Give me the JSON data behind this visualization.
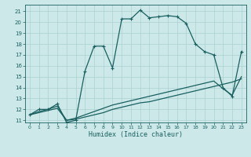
{
  "xlabel": "Humidex (Indice chaleur)",
  "bg_color": "#cce8e8",
  "grid_color": "#aad0d0",
  "line_color": "#1a6060",
  "xlim": [
    -0.5,
    23.5
  ],
  "ylim": [
    10.8,
    21.6
  ],
  "yticks": [
    11,
    12,
    13,
    14,
    15,
    16,
    17,
    18,
    19,
    20,
    21
  ],
  "xticks": [
    0,
    1,
    2,
    3,
    4,
    5,
    6,
    7,
    8,
    9,
    10,
    11,
    12,
    13,
    14,
    15,
    16,
    17,
    18,
    19,
    20,
    21,
    22,
    23
  ],
  "curve_main_x": [
    0,
    1,
    2,
    3,
    4,
    5,
    6,
    7,
    8,
    9,
    10,
    11,
    12,
    13,
    14,
    15,
    16,
    17,
    18,
    19,
    20,
    21,
    22,
    23
  ],
  "curve_main_y": [
    11.5,
    12.0,
    12.0,
    12.5,
    10.8,
    11.0,
    15.5,
    17.8,
    17.8,
    15.8,
    20.3,
    20.3,
    21.1,
    20.4,
    20.5,
    20.6,
    20.5,
    19.9,
    18.0,
    17.3,
    17.0,
    14.0,
    13.2,
    17.3
  ],
  "curve_flat1_x": [
    0,
    1,
    2,
    3,
    4,
    5,
    6,
    7,
    8,
    9,
    10,
    11,
    12,
    13,
    14,
    15,
    16,
    17,
    18,
    19,
    20,
    21,
    22,
    23
  ],
  "curve_flat1_y": [
    11.5,
    11.7,
    11.9,
    12.1,
    11.0,
    11.1,
    11.3,
    11.5,
    11.7,
    12.0,
    12.2,
    12.4,
    12.6,
    12.7,
    12.9,
    13.1,
    13.3,
    13.5,
    13.7,
    13.9,
    14.1,
    14.3,
    14.5,
    14.8
  ],
  "curve_flat2_x": [
    0,
    1,
    2,
    3,
    4,
    5,
    6,
    7,
    8,
    9,
    10,
    11,
    12,
    13,
    14,
    15,
    16,
    17,
    18,
    19,
    20,
    21,
    22,
    23
  ],
  "curve_flat2_y": [
    11.5,
    11.8,
    12.0,
    12.3,
    11.0,
    11.2,
    11.5,
    11.8,
    12.1,
    12.4,
    12.6,
    12.8,
    13.0,
    13.2,
    13.4,
    13.6,
    13.8,
    14.0,
    14.2,
    14.4,
    14.6,
    13.9,
    13.3,
    15.0
  ]
}
